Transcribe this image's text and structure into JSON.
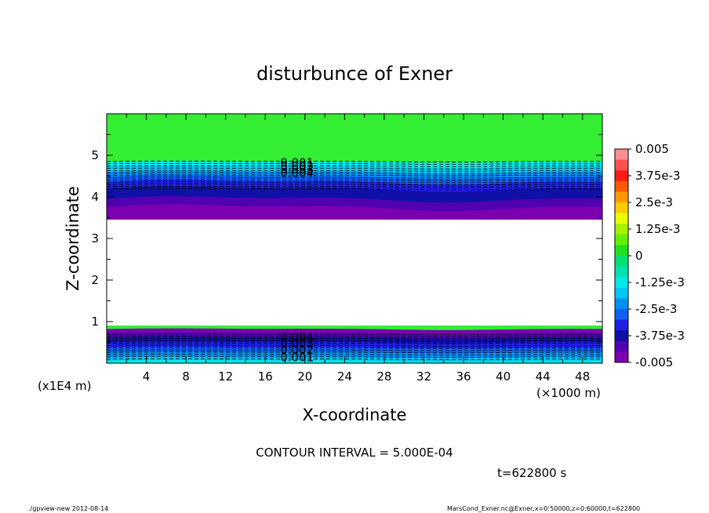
{
  "chart_data": {
    "type": "contour",
    "title": "disturbunce of Exner",
    "xlabel": "X-coordinate",
    "ylabel": "Z-coordinate",
    "x_unit_label": "(×1000 m)",
    "y_unit_label": "(x1E4 m)",
    "xlim": [
      0,
      50
    ],
    "ylim": [
      0,
      6
    ],
    "x_ticks": [
      "4",
      "8",
      "12",
      "16",
      "20",
      "24",
      "28",
      "32",
      "36",
      "40",
      "44",
      "48"
    ],
    "y_ticks": [
      "1",
      "2",
      "3",
      "4",
      "5"
    ],
    "contour_interval": "CONTOUR INTERVAL = 5.000E-04",
    "time_label": "t=622800 s",
    "contour_labels_upper": [
      "0.001",
      "0.002",
      "0.003",
      "0.004"
    ],
    "contour_labels_lower": [
      "0.004",
      "0.003",
      "0.002",
      "0.001"
    ],
    "colorbar": {
      "labels": [
        "0.005",
        "3.75e-3",
        "2.5e-3",
        "1.25e-3",
        "0",
        "-1.25e-3",
        "-2.5e-3",
        "-3.75e-3",
        "-0.005"
      ],
      "colors": [
        "#ff9090",
        "#ff5050",
        "#ff1a1a",
        "#ff5a00",
        "#ff9900",
        "#ffcc00",
        "#e6ff00",
        "#a8f000",
        "#66ee00",
        "#20e020",
        "#00e070",
        "#00e0b0",
        "#00e8e8",
        "#00c8f0",
        "#0090f0",
        "#1060f0",
        "#2020e0",
        "#1010a8",
        "#5000b0",
        "#7a00b0"
      ]
    },
    "bands": {
      "upper": [
        {
          "z": 4.85,
          "color": "#00e8e8"
        },
        {
          "z": 4.72,
          "color": "#00c8f0"
        },
        {
          "z": 4.6,
          "color": "#0090f0"
        },
        {
          "z": 4.48,
          "color": "#1060f0"
        },
        {
          "z": 4.36,
          "color": "#2020e0"
        },
        {
          "z": 4.2,
          "color": "#1010a8"
        },
        {
          "z": 3.95,
          "color": "#5000b0"
        },
        {
          "z": 3.75,
          "color": "#7a00b0"
        }
      ],
      "lower": [
        {
          "z": 0.82,
          "color": "#7a00b0"
        },
        {
          "z": 0.72,
          "color": "#5000b0"
        },
        {
          "z": 0.62,
          "color": "#1010a8"
        },
        {
          "z": 0.5,
          "color": "#2020e0"
        },
        {
          "z": 0.38,
          "color": "#1060f0"
        },
        {
          "z": 0.26,
          "color": "#0090f0"
        },
        {
          "z": 0.14,
          "color": "#00c8f0"
        },
        {
          "z": 0.06,
          "color": "#00e8e8"
        }
      ]
    },
    "background_color": "#33ee33",
    "grid": false
  },
  "footer": {
    "left": "./gpview-new   2012-08-14",
    "right": "MarsCond_Exner.nc@Exner,x=0:50000,z=0:60000,t=622800"
  }
}
